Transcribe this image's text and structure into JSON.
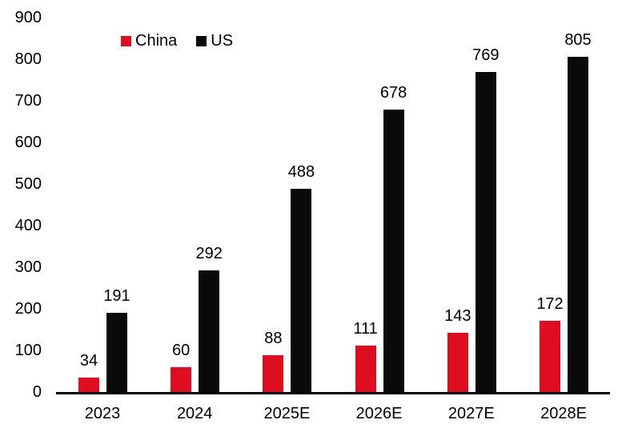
{
  "chart_data": {
    "type": "bar",
    "categories": [
      "2023",
      "2024",
      "2025E",
      "2026E",
      "2027E",
      "2028E"
    ],
    "series": [
      {
        "name": "China",
        "color": "#de0e20",
        "values": [
          34,
          60,
          88,
          111,
          143,
          172
        ]
      },
      {
        "name": "US",
        "color": "#0a0a0a",
        "values": [
          191,
          292,
          488,
          678,
          769,
          805
        ]
      }
    ],
    "title": "",
    "xlabel": "",
    "ylabel": "",
    "ylim": [
      0,
      900
    ],
    "yticks": [
      0,
      100,
      200,
      300,
      400,
      500,
      600,
      700,
      800,
      900
    ],
    "grid": false,
    "legend_position": "top-inside-left",
    "data_labels": true
  },
  "colors": {
    "axis": "#000000",
    "text": "#000000",
    "background": "#ffffff"
  }
}
